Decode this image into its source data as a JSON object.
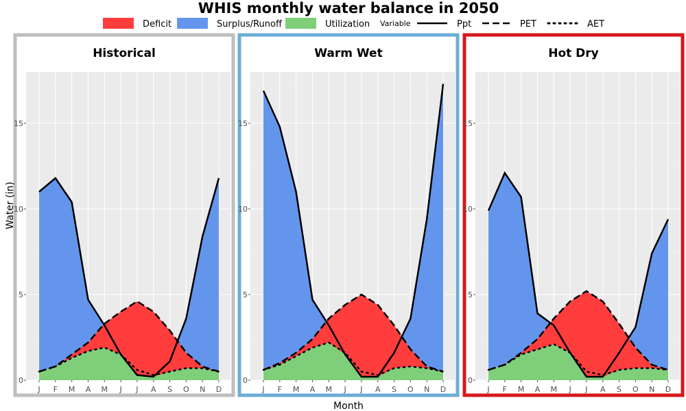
{
  "title": "WHIS monthly water balance in 2050",
  "legend": {
    "fill_items": [
      {
        "label": "Deficit",
        "color": "#FF3D3D"
      },
      {
        "label": "Surplus/Runoff",
        "color": "#6495ED"
      },
      {
        "label": "Utilization",
        "color": "#7ECE7A"
      }
    ],
    "variable_title": "Variable",
    "line_items": [
      {
        "label": "Ppt",
        "style": "solid"
      },
      {
        "label": "PET",
        "style": "dashed"
      },
      {
        "label": "AET",
        "style": "dotted"
      }
    ]
  },
  "chart_data": {
    "type": "area",
    "xlabel": "Month",
    "ylabel": "Water (in)",
    "ylim": [
      0,
      18
    ],
    "yticks": [
      0,
      5,
      10,
      15
    ],
    "categories": [
      "J",
      "F",
      "M",
      "A",
      "M",
      "J",
      "J",
      "A",
      "S",
      "O",
      "N",
      "D"
    ],
    "grid": true,
    "colors": {
      "deficit": "#FF3D3D",
      "surplus": "#6495ED",
      "utilization": "#7ECE7A",
      "panel_bg": "#EBEBEB"
    },
    "panels": [
      {
        "name": "Historical",
        "border_color": "#BEBEBE",
        "series": [
          {
            "name": "Ppt",
            "values": [
              11.0,
              11.8,
              10.4,
              4.7,
              3.2,
              1.5,
              0.3,
              0.2,
              1.1,
              3.6,
              8.4,
              11.8
            ]
          },
          {
            "name": "PET",
            "values": [
              0.5,
              0.8,
              1.5,
              2.2,
              3.3,
              4.0,
              4.6,
              4.0,
              2.9,
              1.6,
              0.8,
              0.5
            ]
          },
          {
            "name": "AET",
            "values": [
              0.5,
              0.8,
              1.3,
              1.7,
              1.9,
              1.5,
              0.6,
              0.3,
              0.5,
              0.7,
              0.7,
              0.5
            ]
          }
        ]
      },
      {
        "name": "Warm Wet",
        "border_color": "#6BAED6",
        "series": [
          {
            "name": "Ppt",
            "values": [
              16.9,
              14.8,
              11.0,
              4.7,
              3.2,
              1.5,
              0.2,
              0.2,
              1.6,
              3.6,
              9.4,
              17.3
            ]
          },
          {
            "name": "PET",
            "values": [
              0.6,
              1.0,
              1.6,
              2.4,
              3.6,
              4.4,
              5.0,
              4.4,
              3.2,
              1.8,
              0.8,
              0.5
            ]
          },
          {
            "name": "AET",
            "values": [
              0.6,
              0.9,
              1.4,
              1.9,
              2.2,
              1.6,
              0.5,
              0.3,
              0.7,
              0.8,
              0.7,
              0.5
            ]
          }
        ]
      },
      {
        "name": "Hot Dry",
        "border_color": "#D7191C",
        "series": [
          {
            "name": "Ppt",
            "values": [
              9.9,
              12.1,
              10.7,
              3.9,
              3.2,
              1.6,
              0.2,
              0.2,
              1.6,
              3.1,
              7.4,
              9.4
            ]
          },
          {
            "name": "PET",
            "values": [
              0.6,
              0.9,
              1.6,
              2.4,
              3.6,
              4.6,
              5.2,
              4.6,
              3.3,
              1.9,
              0.9,
              0.6
            ]
          },
          {
            "name": "AET",
            "values": [
              0.6,
              0.9,
              1.5,
              1.8,
              2.1,
              1.6,
              0.5,
              0.3,
              0.6,
              0.7,
              0.7,
              0.6
            ]
          }
        ]
      }
    ]
  }
}
